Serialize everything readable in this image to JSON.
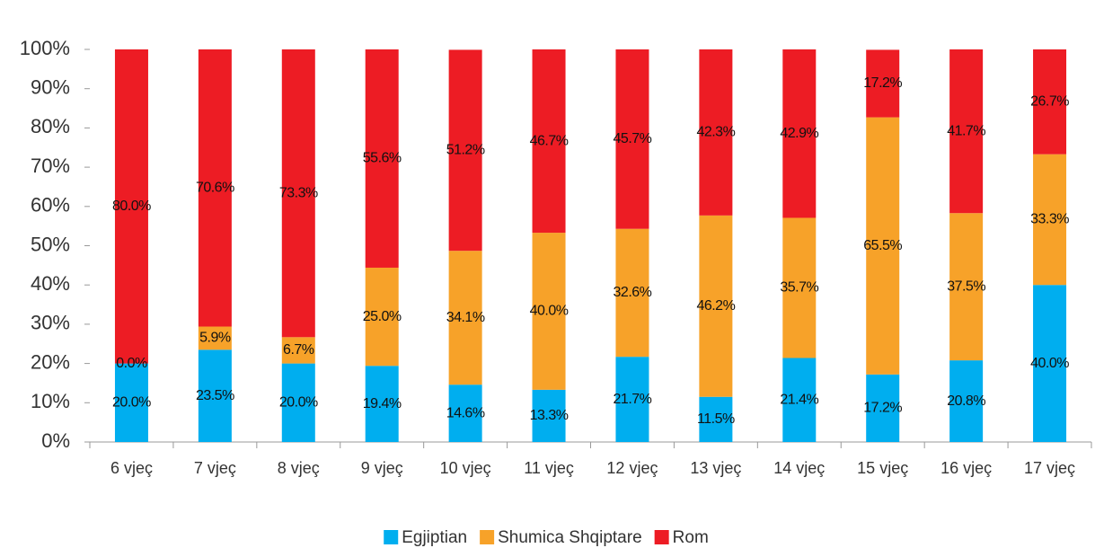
{
  "chart_data": {
    "type": "stacked_bar",
    "categories": [
      "6 vjeç",
      "7 vjeç",
      "8 vjeç",
      "9 vjeç",
      "10 vjeç",
      "11 vjeç",
      "12 vjeç",
      "13 vjeç",
      "14 vjeç",
      "15 vjeç",
      "16 vjeç",
      "17 vjeç"
    ],
    "series": [
      {
        "name": "Egjiptian",
        "color": "#00aeef",
        "values": [
          20,
          23.5,
          20,
          19.4,
          14.6,
          13.3,
          21.7,
          11.5,
          21.4,
          17.2,
          20.8,
          40
        ],
        "value_labels": [
          "20.0%",
          "23.5%",
          "20.0%",
          "19.4%",
          "14.6%",
          "13.3%",
          "21.7%",
          "11.5%",
          "21.4%",
          "17.2%",
          "20.8%",
          "40.0%"
        ]
      },
      {
        "name": "Shumica Shqiptare",
        "color": "#f7a229",
        "values": [
          0,
          5.9,
          6.7,
          25,
          34.1,
          40,
          32.6,
          46.2,
          35.7,
          65.5,
          37.5,
          33.3
        ],
        "value_labels": [
          "0.0%",
          "5.9%",
          "6.7%",
          "25.0%",
          "34.1%",
          "40.0%",
          "32.6%",
          "46.2%",
          "35.7%",
          "65.5%",
          "37.5%",
          "33.3%"
        ]
      },
      {
        "name": "Rom",
        "color": "#ed1c24",
        "values": [
          80,
          70.6,
          73.3,
          55.6,
          51.2,
          46.7,
          45.7,
          42.3,
          42.9,
          17.2,
          41.7,
          26.7
        ],
        "value_labels": [
          "80.0%",
          "70.6%",
          "73.3%",
          "55.6%",
          "51.2%",
          "46.7%",
          "45.7%",
          "42.3%",
          "42.9%",
          "17.2%",
          "41.7%",
          "26.7%"
        ]
      }
    ],
    "ylim": [
      0,
      100
    ],
    "yticks": [
      {
        "value": 0,
        "label": "0%"
      },
      {
        "value": 10,
        "label": "10%"
      },
      {
        "value": 20,
        "label": "20%"
      },
      {
        "value": 30,
        "label": "30%"
      },
      {
        "value": 40,
        "label": "40%"
      },
      {
        "value": 50,
        "label": "50%"
      },
      {
        "value": 60,
        "label": "60%"
      },
      {
        "value": 70,
        "label": "70%"
      },
      {
        "value": 80,
        "label": "80%"
      },
      {
        "value": 90,
        "label": "90%"
      },
      {
        "value": 100,
        "label": "100%"
      }
    ],
    "legend": "bottom"
  }
}
